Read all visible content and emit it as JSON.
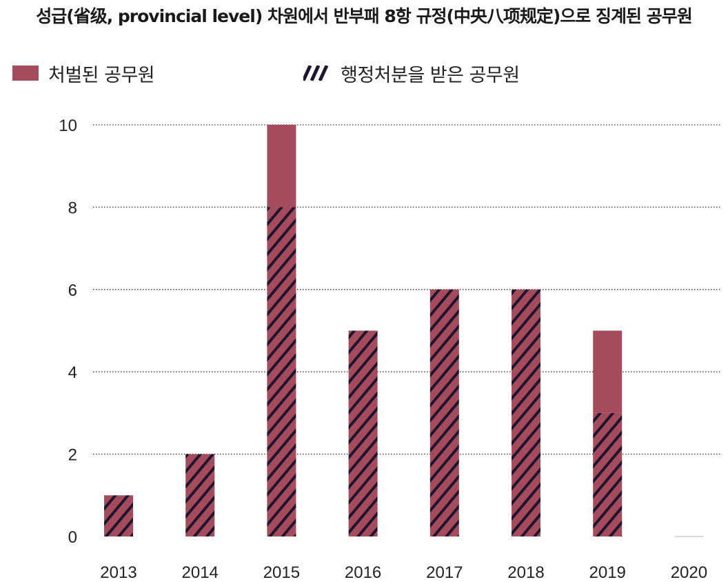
{
  "chart_data": {
    "type": "bar",
    "stacked": true,
    "title": "성급(省级, provincial level) 차원에서 반부패 8항 규정(中央八项规定)으로 징계된 공무원",
    "xlabel": "",
    "ylabel": "",
    "ylim": [
      0,
      10
    ],
    "yticks": [
      "0",
      "2",
      "4",
      "6",
      "8",
      "10"
    ],
    "grid": "horizontal-dotted",
    "legend_position": "top",
    "categories": [
      "2013",
      "2014",
      "2015",
      "2016",
      "2017",
      "2018",
      "2019",
      "2020"
    ],
    "series": [
      {
        "name": "처벌된 공무원",
        "values": [
          0,
          0,
          2,
          0,
          0,
          0,
          2,
          0
        ],
        "color": "#a64b5b",
        "pattern": "solid"
      },
      {
        "name": "행정처분을 받은 공무원",
        "values": [
          1,
          2,
          8,
          5,
          6,
          6,
          3,
          0
        ],
        "color": "#a64b5b",
        "pattern": "hatched",
        "hatch_color": "#1e1530"
      }
    ]
  }
}
